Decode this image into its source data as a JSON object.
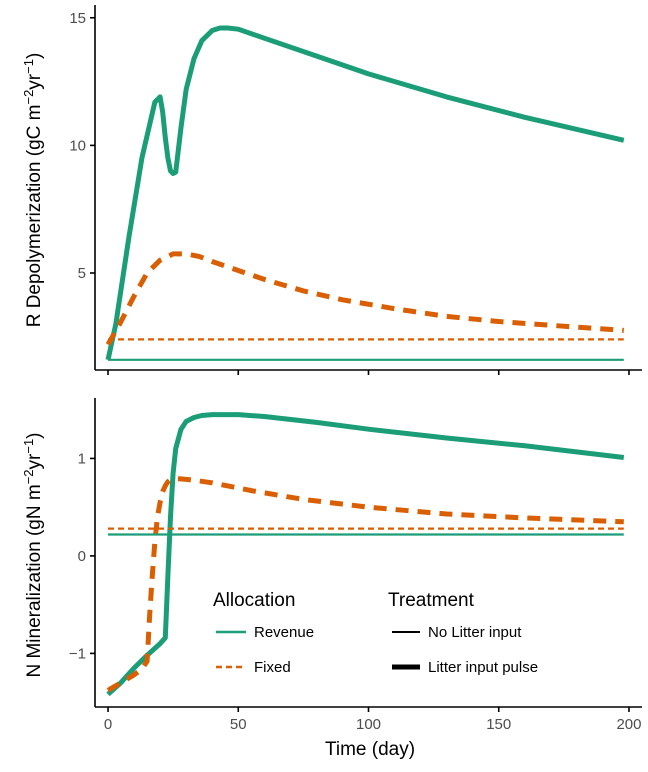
{
  "colors": {
    "revenue": "#1b9e77",
    "fixed": "#d95f02"
  },
  "chart_data": [
    {
      "type": "line",
      "title": "",
      "xlabel": "",
      "ylabel_main": "R Depolymerization (gC m",
      "ylabel_sup1": "−2",
      "ylabel_mid": "yr",
      "ylabel_sup2": "−1",
      "ylabel_end": ")",
      "xlim": [
        -5,
        205
      ],
      "ylim": [
        1.2,
        15.5
      ],
      "x_ticks": [
        0,
        50,
        100,
        150,
        200
      ],
      "x_tick_labels_visible": false,
      "y_ticks": [
        5,
        10,
        15
      ],
      "y_tick_labels": [
        "5",
        "10",
        "15"
      ],
      "series": [
        {
          "allocation": "Revenue",
          "treatment": "Litter input pulse",
          "x": [
            0,
            3,
            8,
            13,
            18,
            20,
            21,
            22,
            23,
            24,
            25,
            26,
            28,
            30,
            33,
            36,
            40,
            43,
            46,
            50,
            60,
            80,
            100,
            130,
            160,
            198
          ],
          "y": [
            1.6,
            3.0,
            6.4,
            9.5,
            11.7,
            11.9,
            11.3,
            10.3,
            9.5,
            9.0,
            8.9,
            8.95,
            10.7,
            12.2,
            13.4,
            14.1,
            14.5,
            14.6,
            14.6,
            14.55,
            14.2,
            13.5,
            12.8,
            11.9,
            11.1,
            10.2
          ]
        },
        {
          "allocation": "Fixed",
          "treatment": "Litter input pulse",
          "x": [
            0,
            5,
            10,
            15,
            20,
            25,
            30,
            35,
            40,
            50,
            60,
            75,
            90,
            110,
            130,
            150,
            170,
            198
          ],
          "y": [
            2.2,
            3.1,
            4.1,
            5.0,
            5.5,
            5.75,
            5.75,
            5.65,
            5.45,
            5.1,
            4.75,
            4.3,
            3.95,
            3.6,
            3.3,
            3.1,
            2.95,
            2.75
          ]
        },
        {
          "allocation": "Fixed",
          "treatment": "No Litter input",
          "x": [
            0,
            198
          ],
          "y": [
            2.4,
            2.4
          ]
        },
        {
          "allocation": "Revenue",
          "treatment": "No Litter input",
          "x": [
            0,
            198
          ],
          "y": [
            1.6,
            1.6
          ]
        }
      ]
    },
    {
      "type": "line",
      "title": "",
      "xlabel": "Time (day)",
      "ylabel_main": "N Mineralization (gN m",
      "ylabel_sup1": "−2",
      "ylabel_mid": "yr",
      "ylabel_sup2": "−1",
      "ylabel_end": ")",
      "xlim": [
        -5,
        205
      ],
      "ylim": [
        -1.55,
        1.62
      ],
      "x_ticks": [
        0,
        50,
        100,
        150,
        200
      ],
      "x_tick_labels": [
        "0",
        "50",
        "100",
        "150",
        "200"
      ],
      "y_ticks": [
        -1,
        0,
        1
      ],
      "y_tick_labels": [
        "−1",
        "0",
        "1"
      ],
      "series": [
        {
          "allocation": "Revenue",
          "treatment": "Litter input pulse",
          "x": [
            0,
            5,
            10,
            15,
            20,
            22,
            23,
            24,
            25,
            26,
            28,
            30,
            33,
            36,
            40,
            45,
            50,
            60,
            80,
            100,
            130,
            160,
            198
          ],
          "y": [
            -1.42,
            -1.3,
            -1.15,
            -1.02,
            -0.9,
            -0.84,
            -0.2,
            0.4,
            0.85,
            1.1,
            1.3,
            1.38,
            1.42,
            1.44,
            1.45,
            1.45,
            1.45,
            1.43,
            1.37,
            1.3,
            1.21,
            1.13,
            1.01
          ]
        },
        {
          "allocation": "Fixed",
          "treatment": "Litter input pulse",
          "x": [
            0,
            5,
            10,
            13,
            15,
            16,
            17,
            18,
            19,
            20,
            21,
            22,
            23,
            24,
            25,
            28,
            32,
            40,
            55,
            75,
            100,
            130,
            160,
            198
          ],
          "y": [
            -1.38,
            -1.3,
            -1.22,
            -1.16,
            -1.08,
            -0.6,
            -0.2,
            0.15,
            0.4,
            0.55,
            0.66,
            0.72,
            0.76,
            0.78,
            0.79,
            0.79,
            0.78,
            0.75,
            0.67,
            0.58,
            0.5,
            0.43,
            0.39,
            0.35
          ]
        },
        {
          "allocation": "Fixed",
          "treatment": "No Litter input",
          "x": [
            0,
            198
          ],
          "y": [
            0.28,
            0.28
          ]
        },
        {
          "allocation": "Revenue",
          "treatment": "No Litter input",
          "x": [
            0,
            198
          ],
          "y": [
            0.22,
            0.22
          ]
        }
      ]
    }
  ],
  "legend": {
    "placement": "bottom-center of lower panel",
    "allocation_title": "Allocation",
    "allocation_items": [
      {
        "label": "Revenue",
        "key": "revenue",
        "dash": "solid"
      },
      {
        "label": "Fixed",
        "key": "fixed",
        "dash": "dashed"
      }
    ],
    "treatment_title": "Treatment",
    "treatment_items": [
      {
        "label": "No Litter input",
        "width": "thin"
      },
      {
        "label": "Litter input pulse",
        "width": "thick"
      }
    ]
  }
}
